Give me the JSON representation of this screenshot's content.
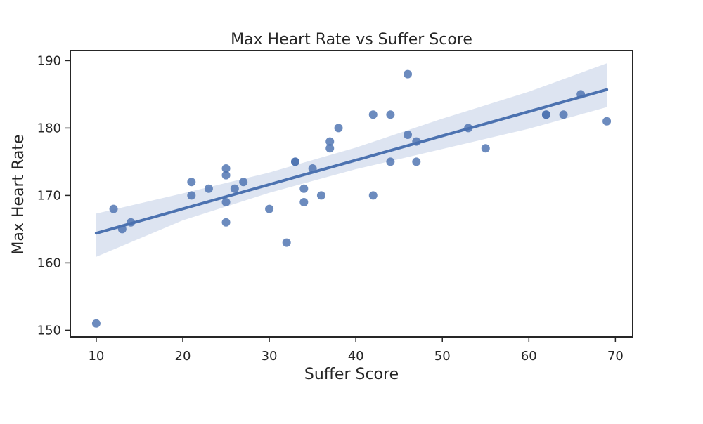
{
  "chart_data": {
    "type": "scatter",
    "title": "Max Heart Rate vs Suffer Score",
    "xlabel": "Suffer Score",
    "ylabel": "Max Heart Rate",
    "xlim": [
      7,
      72
    ],
    "ylim": [
      149,
      191.5
    ],
    "xticks": [
      10,
      20,
      30,
      40,
      50,
      60,
      70
    ],
    "yticks": [
      150,
      160,
      170,
      180,
      190
    ],
    "grid": false,
    "legend": "none",
    "colors": {
      "points": "#4c72b0",
      "line": "#4c72b0",
      "band": "#dde4f1",
      "axis": "#262626"
    },
    "points": [
      {
        "x": 10,
        "y": 151
      },
      {
        "x": 12,
        "y": 168
      },
      {
        "x": 13,
        "y": 165
      },
      {
        "x": 14,
        "y": 166
      },
      {
        "x": 21,
        "y": 172
      },
      {
        "x": 21,
        "y": 170
      },
      {
        "x": 23,
        "y": 171
      },
      {
        "x": 25,
        "y": 174
      },
      {
        "x": 25,
        "y": 173
      },
      {
        "x": 25,
        "y": 169
      },
      {
        "x": 25,
        "y": 166
      },
      {
        "x": 26,
        "y": 171
      },
      {
        "x": 27,
        "y": 172
      },
      {
        "x": 30,
        "y": 168
      },
      {
        "x": 32,
        "y": 163
      },
      {
        "x": 33,
        "y": 175
      },
      {
        "x": 33,
        "y": 175
      },
      {
        "x": 34,
        "y": 171
      },
      {
        "x": 34,
        "y": 169
      },
      {
        "x": 35,
        "y": 174
      },
      {
        "x": 36,
        "y": 170
      },
      {
        "x": 37,
        "y": 178
      },
      {
        "x": 37,
        "y": 177
      },
      {
        "x": 38,
        "y": 180
      },
      {
        "x": 42,
        "y": 182
      },
      {
        "x": 42,
        "y": 170
      },
      {
        "x": 44,
        "y": 182
      },
      {
        "x": 44,
        "y": 175
      },
      {
        "x": 46,
        "y": 188
      },
      {
        "x": 46,
        "y": 179
      },
      {
        "x": 47,
        "y": 178
      },
      {
        "x": 47,
        "y": 175
      },
      {
        "x": 53,
        "y": 180
      },
      {
        "x": 55,
        "y": 177
      },
      {
        "x": 62,
        "y": 182
      },
      {
        "x": 62,
        "y": 182
      },
      {
        "x": 64,
        "y": 182
      },
      {
        "x": 66,
        "y": 185
      },
      {
        "x": 69,
        "y": 181
      }
    ],
    "regression": {
      "x": [
        10,
        69
      ],
      "y": [
        164.4,
        185.7
      ]
    },
    "confidence_band": [
      {
        "x": 10,
        "lower": 160.9,
        "upper": 167.3
      },
      {
        "x": 20,
        "lower": 166.3,
        "upper": 170.3
      },
      {
        "x": 30,
        "lower": 170.4,
        "upper": 173.4
      },
      {
        "x": 40,
        "lower": 173.9,
        "upper": 177.1
      },
      {
        "x": 50,
        "lower": 176.9,
        "upper": 181.4
      },
      {
        "x": 60,
        "lower": 179.9,
        "upper": 185.4
      },
      {
        "x": 69,
        "lower": 183.1,
        "upper": 189.6
      }
    ]
  }
}
